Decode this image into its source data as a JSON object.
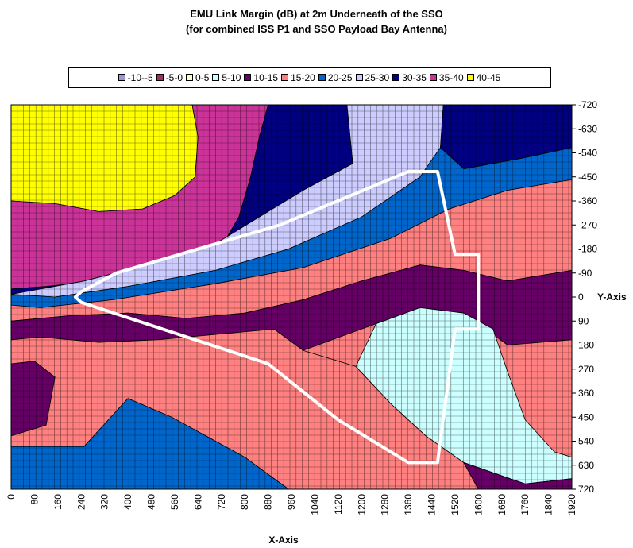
{
  "title": {
    "line1": "EMU Link Margin (dB) at 2m Underneath of the SSO",
    "line2": "(for combined ISS P1 and SSO Payload Bay Antenna)"
  },
  "chart_data": {
    "type": "heatmap",
    "title": "EMU Link Margin (dB) at 2m Underneath of the SSO",
    "subtitle": "(for combined ISS P1 and SSO Payload Bay Antenna)",
    "xlabel": "X-Axis",
    "ylabel": "Y-Axis",
    "xlim": [
      0,
      1920
    ],
    "ylim": [
      -720,
      720
    ],
    "x_ticks": [
      "0",
      "80",
      "160",
      "240",
      "320",
      "400",
      "480",
      "560",
      "640",
      "720",
      "800",
      "880",
      "960",
      "1040",
      "1120",
      "1200",
      "1280",
      "1360",
      "1440",
      "1520",
      "1600",
      "1680",
      "1760",
      "1840",
      "1920"
    ],
    "y_ticks": [
      "-720",
      "-630",
      "-540",
      "-450",
      "-360",
      "-270",
      "-180",
      "-90",
      "0",
      "90",
      "180",
      "270",
      "360",
      "450",
      "540",
      "630",
      "720"
    ],
    "legend_position": "top",
    "grid": true,
    "bins": [
      {
        "label": "-10--5",
        "color": "#9999cc"
      },
      {
        "label": "-5-0",
        "color": "#993366"
      },
      {
        "label": "0-5",
        "color": "#ffffcc"
      },
      {
        "label": "5-10",
        "color": "#ccffff"
      },
      {
        "label": "10-15",
        "color": "#660066"
      },
      {
        "label": "15-20",
        "color": "#ff8080"
      },
      {
        "label": "20-25",
        "color": "#0066cc"
      },
      {
        "label": "25-30",
        "color": "#ccccff"
      },
      {
        "label": "30-35",
        "color": "#000080"
      },
      {
        "label": "35-40",
        "color": "#cc3399"
      },
      {
        "label": "40-45",
        "color": "#ffff00"
      }
    ],
    "regions": [
      {
        "label": "40-45",
        "polygon": [
          [
            0,
            -720
          ],
          [
            620,
            -720
          ],
          [
            640,
            -600
          ],
          [
            630,
            -450
          ],
          [
            560,
            -380
          ],
          [
            450,
            -330
          ],
          [
            300,
            -320
          ],
          [
            150,
            -350
          ],
          [
            0,
            -360
          ]
        ]
      },
      {
        "label": "35-40",
        "polygon": [
          [
            620,
            -720
          ],
          [
            880,
            -720
          ],
          [
            850,
            -600
          ],
          [
            820,
            -450
          ],
          [
            780,
            -300
          ],
          [
            700,
            -150
          ],
          [
            550,
            -100
          ],
          [
            300,
            -60
          ],
          [
            120,
            -40
          ],
          [
            0,
            -30
          ],
          [
            0,
            -360
          ],
          [
            150,
            -350
          ],
          [
            300,
            -320
          ],
          [
            450,
            -330
          ],
          [
            560,
            -380
          ],
          [
            630,
            -450
          ],
          [
            640,
            -600
          ]
        ]
      },
      {
        "label": "30-35",
        "polygon": [
          [
            880,
            -720
          ],
          [
            1150,
            -720
          ],
          [
            1170,
            -500
          ],
          [
            1000,
            -400
          ],
          [
            850,
            -300
          ],
          [
            700,
            -200
          ],
          [
            500,
            -130
          ],
          [
            250,
            -60
          ],
          [
            0,
            -10
          ],
          [
            0,
            -30
          ],
          [
            120,
            -40
          ],
          [
            300,
            -60
          ],
          [
            550,
            -100
          ],
          [
            700,
            -150
          ],
          [
            780,
            -300
          ],
          [
            820,
            -450
          ],
          [
            850,
            -600
          ]
        ]
      },
      {
        "label": "25-30",
        "polygon": [
          [
            1150,
            -720
          ],
          [
            1480,
            -720
          ],
          [
            1470,
            -560
          ],
          [
            1400,
            -450
          ],
          [
            1200,
            -300
          ],
          [
            950,
            -180
          ],
          [
            700,
            -100
          ],
          [
            400,
            -40
          ],
          [
            150,
            0
          ],
          [
            0,
            -10
          ],
          [
            250,
            -60
          ],
          [
            500,
            -130
          ],
          [
            700,
            -200
          ],
          [
            850,
            -300
          ],
          [
            1000,
            -400
          ],
          [
            1170,
            -500
          ]
        ]
      },
      {
        "label": "30-35",
        "polygon": [
          [
            1480,
            -720
          ],
          [
            1920,
            -720
          ],
          [
            1920,
            -560
          ],
          [
            1750,
            -520
          ],
          [
            1550,
            -480
          ],
          [
            1470,
            -560
          ]
        ]
      },
      {
        "label": "20-25",
        "polygon": [
          [
            1470,
            -560
          ],
          [
            1550,
            -480
          ],
          [
            1750,
            -520
          ],
          [
            1920,
            -560
          ],
          [
            1920,
            -440
          ],
          [
            1700,
            -400
          ],
          [
            1500,
            -330
          ],
          [
            1300,
            -220
          ],
          [
            1000,
            -110
          ],
          [
            700,
            -50
          ],
          [
            350,
            10
          ],
          [
            100,
            40
          ],
          [
            0,
            30
          ],
          [
            0,
            -10
          ],
          [
            150,
            0
          ],
          [
            400,
            -40
          ],
          [
            700,
            -100
          ],
          [
            950,
            -180
          ],
          [
            1200,
            -300
          ],
          [
            1400,
            -450
          ]
        ]
      },
      {
        "label": "15-20",
        "polygon": [
          [
            1920,
            -440
          ],
          [
            1920,
            -100
          ],
          [
            1700,
            -60
          ],
          [
            1550,
            -100
          ],
          [
            1400,
            -120
          ],
          [
            1200,
            -60
          ],
          [
            1000,
            10
          ],
          [
            800,
            60
          ],
          [
            600,
            80
          ],
          [
            400,
            60
          ],
          [
            200,
            70
          ],
          [
            0,
            90
          ],
          [
            0,
            30
          ],
          [
            100,
            40
          ],
          [
            350,
            10
          ],
          [
            700,
            -50
          ],
          [
            1000,
            -110
          ],
          [
            1300,
            -220
          ],
          [
            1500,
            -330
          ],
          [
            1700,
            -400
          ]
        ]
      },
      {
        "label": "10-15",
        "polygon": [
          [
            1920,
            -100
          ],
          [
            1920,
            160
          ],
          [
            1700,
            180
          ],
          [
            1550,
            60
          ],
          [
            1400,
            40
          ],
          [
            1200,
            120
          ],
          [
            1000,
            200
          ],
          [
            900,
            120
          ],
          [
            700,
            140
          ],
          [
            500,
            160
          ],
          [
            300,
            170
          ],
          [
            100,
            150
          ],
          [
            0,
            160
          ],
          [
            0,
            90
          ],
          [
            200,
            70
          ],
          [
            400,
            60
          ],
          [
            600,
            80
          ],
          [
            800,
            60
          ],
          [
            1000,
            10
          ],
          [
            1200,
            -60
          ],
          [
            1400,
            -120
          ],
          [
            1550,
            -100
          ],
          [
            1700,
            -60
          ]
        ]
      },
      {
        "label": "5-10",
        "polygon": [
          [
            1250,
            100
          ],
          [
            1400,
            40
          ],
          [
            1550,
            60
          ],
          [
            1650,
            120
          ],
          [
            1700,
            280
          ],
          [
            1760,
            460
          ],
          [
            1860,
            580
          ],
          [
            1920,
            600
          ],
          [
            1920,
            680
          ],
          [
            1760,
            700
          ],
          [
            1550,
            620
          ],
          [
            1420,
            520
          ],
          [
            1300,
            400
          ],
          [
            1180,
            260
          ]
        ]
      },
      {
        "label": "15-20",
        "polygon": [
          [
            0,
            160
          ],
          [
            100,
            150
          ],
          [
            300,
            170
          ],
          [
            500,
            160
          ],
          [
            700,
            140
          ],
          [
            900,
            120
          ],
          [
            1000,
            200
          ],
          [
            1180,
            260
          ],
          [
            1300,
            400
          ],
          [
            1420,
            520
          ],
          [
            1550,
            620
          ],
          [
            1600,
            720
          ],
          [
            950,
            720
          ],
          [
            800,
            600
          ],
          [
            550,
            450
          ],
          [
            400,
            380
          ],
          [
            250,
            560
          ],
          [
            0,
            560
          ]
        ]
      },
      {
        "label": "10-15",
        "polygon": [
          [
            0,
            250
          ],
          [
            80,
            240
          ],
          [
            150,
            300
          ],
          [
            120,
            480
          ],
          [
            0,
            520
          ]
        ]
      },
      {
        "label": "20-25",
        "polygon": [
          [
            0,
            560
          ],
          [
            250,
            560
          ],
          [
            400,
            380
          ],
          [
            550,
            450
          ],
          [
            800,
            600
          ],
          [
            950,
            720
          ],
          [
            0,
            720
          ]
        ]
      },
      {
        "label": "10-15",
        "polygon": [
          [
            1600,
            720
          ],
          [
            1550,
            620
          ],
          [
            1760,
            700
          ],
          [
            1920,
            680
          ],
          [
            1920,
            720
          ]
        ]
      }
    ],
    "outline": [
      [
        1360,
        -470
      ],
      [
        1460,
        -470
      ],
      [
        1520,
        -160
      ],
      [
        1600,
        -160
      ],
      [
        1600,
        120
      ],
      [
        1520,
        120
      ],
      [
        1460,
        620
      ],
      [
        1360,
        620
      ],
      [
        1120,
        460
      ],
      [
        880,
        250
      ],
      [
        240,
        20
      ],
      [
        220,
        0
      ],
      [
        240,
        -20
      ],
      [
        360,
        -90
      ],
      [
        920,
        -270
      ]
    ]
  }
}
